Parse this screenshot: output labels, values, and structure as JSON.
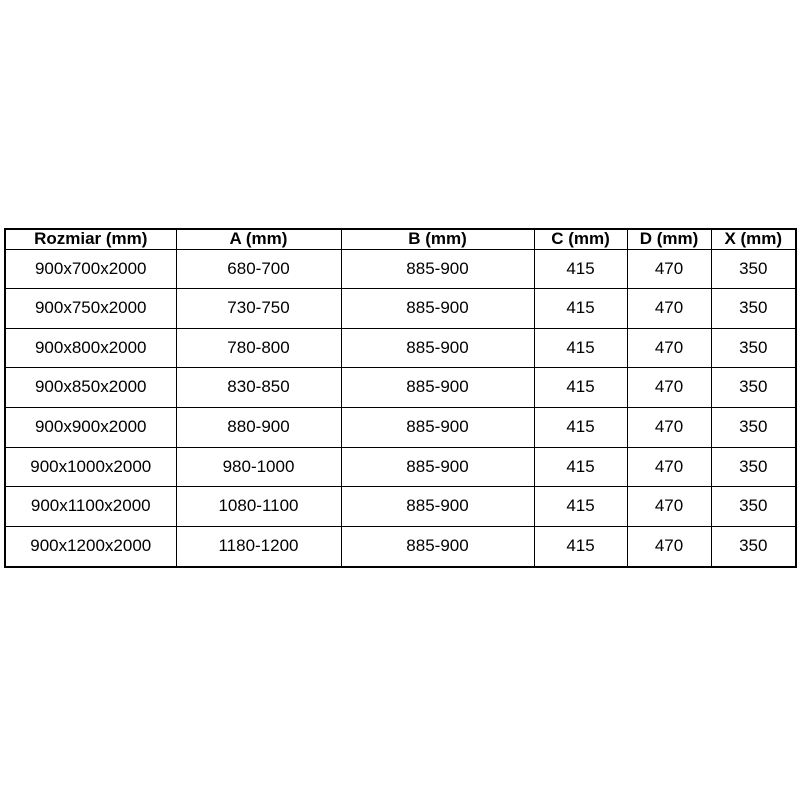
{
  "chart_data": {
    "type": "table",
    "title": "",
    "columns": [
      "Rozmiar (mm)",
      "A (mm)",
      "B (mm)",
      "C (mm)",
      "D (mm)",
      "X (mm)"
    ],
    "rows": [
      [
        "900x700x2000",
        "680-700",
        "885-900",
        "415",
        "470",
        "350"
      ],
      [
        "900x750x2000",
        "730-750",
        "885-900",
        "415",
        "470",
        "350"
      ],
      [
        "900x800x2000",
        "780-800",
        "885-900",
        "415",
        "470",
        "350"
      ],
      [
        "900x850x2000",
        "830-850",
        "885-900",
        "415",
        "470",
        "350"
      ],
      [
        "900x900x2000",
        "880-900",
        "885-900",
        "415",
        "470",
        "350"
      ],
      [
        "900x1000x2000",
        "980-1000",
        "885-900",
        "415",
        "470",
        "350"
      ],
      [
        "900x1100x2000",
        "1080-1100",
        "885-900",
        "415",
        "470",
        "350"
      ],
      [
        "900x1200x2000",
        "1180-1200",
        "885-900",
        "415",
        "470",
        "350"
      ]
    ],
    "layout_hints": {
      "header_bold": true,
      "all_cells_centered": true,
      "grid": "on"
    }
  },
  "colors": {
    "border": "#000000",
    "text": "#000000",
    "background": "#ffffff"
  }
}
